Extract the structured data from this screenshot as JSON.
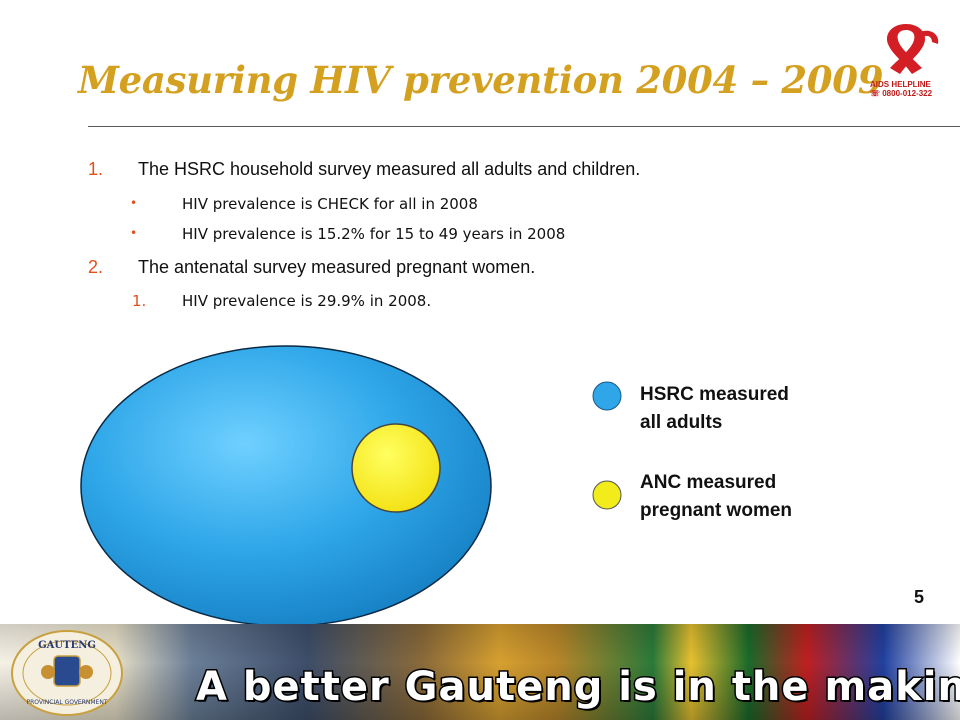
{
  "slide": {
    "title": "Measuring HIV prevention 2004 – 2009",
    "page_number": "5"
  },
  "logo": {
    "text_line1": "AIDS HELPLINE",
    "text_line2": "☏ 0800-012-322",
    "ribbon_color": "#d21e24"
  },
  "points": [
    {
      "number": "1.",
      "text": "The HSRC household survey measured all adults and children.",
      "sub": [
        {
          "marker": "•",
          "text": "HIV prevalence is CHECK for all in 2008"
        },
        {
          "marker": "•",
          "text": "HIV prevalence is 15.2% for 15 to 49 years in 2008"
        }
      ]
    },
    {
      "number": "2.",
      "text": "The antenatal survey measured pregnant women.",
      "sub": [
        {
          "marker": "1.",
          "text": "HIV prevalence is 29.9% in 2008."
        }
      ]
    }
  ],
  "legend": [
    {
      "label_line1": "HSRC measured",
      "label_line2": "all adults",
      "color": "#2ea6e8"
    },
    {
      "label_line1": "ANC measured",
      "label_line2": "pregnant women",
      "color": "#f2ec1a"
    }
  ],
  "banner": {
    "crest_word": "GAUTENG",
    "crest_subtitle": "PROVINCIAL GOVERNMENT",
    "slogan": "A better Gauteng is in the making"
  }
}
